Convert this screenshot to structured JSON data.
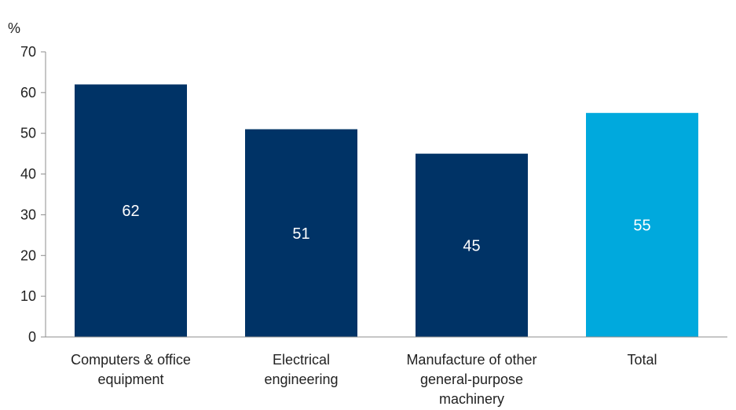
{
  "chart_data": {
    "type": "bar",
    "ylabel": "%",
    "ylim": [
      0,
      70
    ],
    "yticks": [
      0,
      10,
      20,
      30,
      40,
      50,
      60,
      70
    ],
    "grid": false,
    "legend": "none",
    "categories": [
      [
        "Computers & office",
        "equipment"
      ],
      [
        "Electrical",
        "engineering"
      ],
      [
        "Manufacture of other",
        "general-purpose",
        "machinery"
      ],
      [
        "Total"
      ]
    ],
    "values": [
      62,
      51,
      45,
      55
    ],
    "data_labels": [
      "62",
      "51",
      "45",
      "55"
    ],
    "colors": [
      "#003366",
      "#003366",
      "#003366",
      "#00a9dd"
    ]
  }
}
